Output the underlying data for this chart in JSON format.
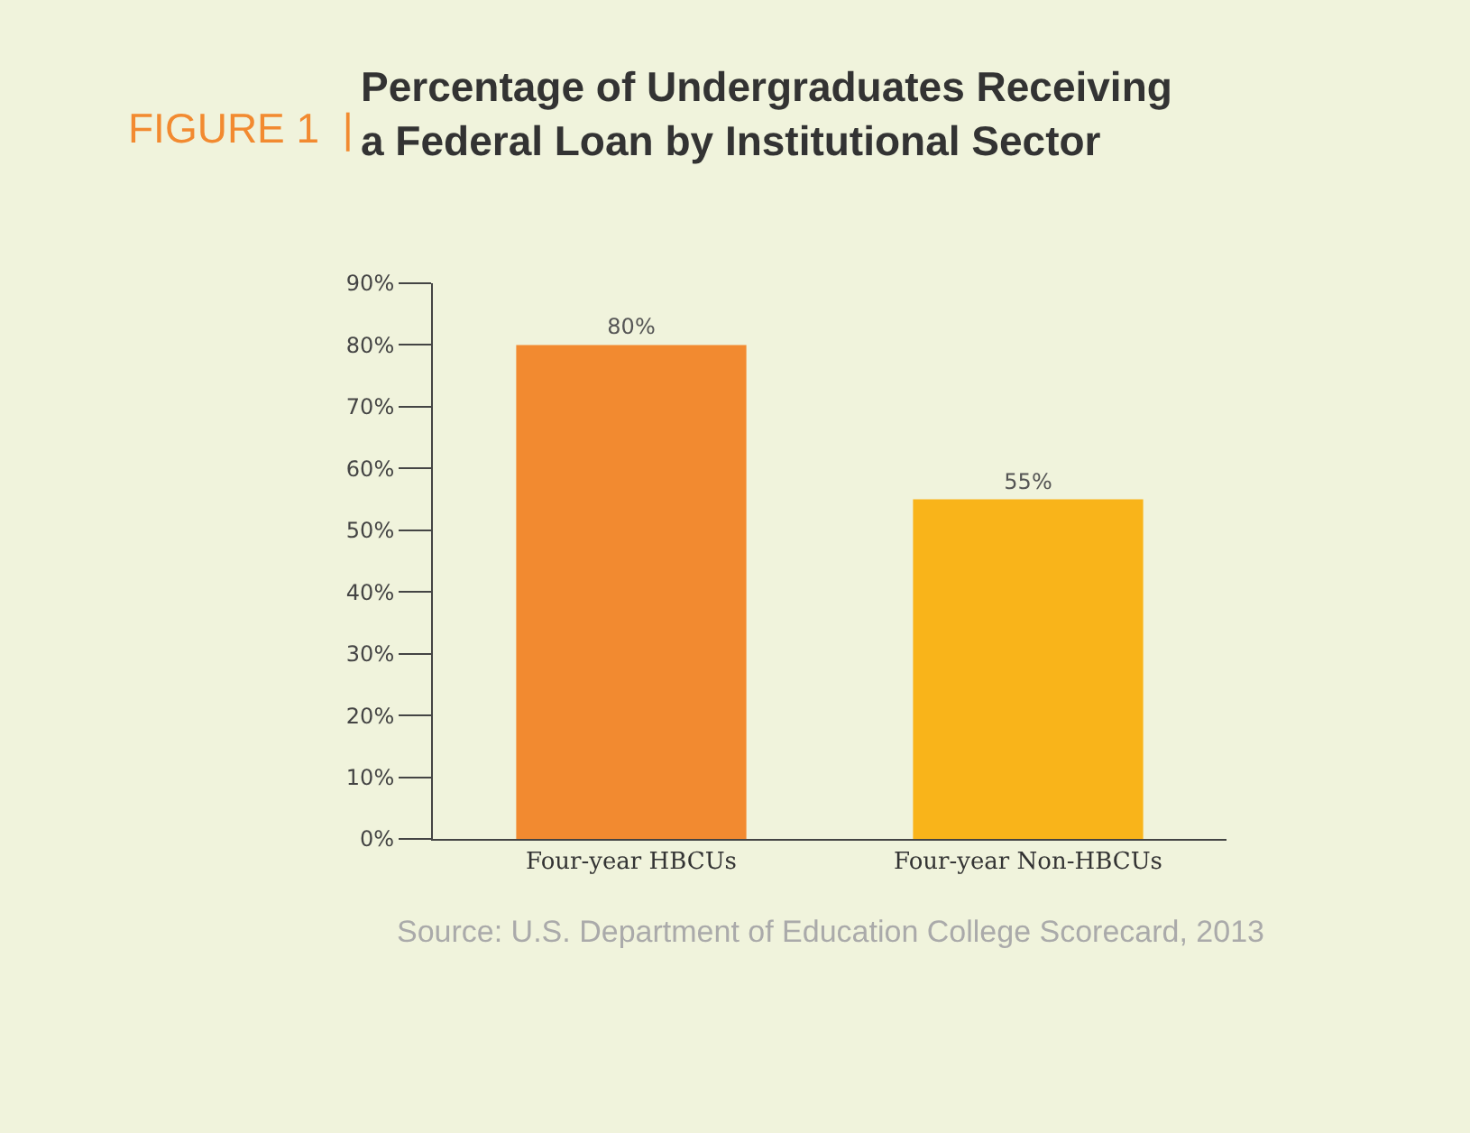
{
  "chart_data": {
    "type": "bar",
    "title": "Percentage of Undergraduates Receiving\na Federal Loan by Institutional Sector",
    "subtitle": "FIGURE 1  |",
    "categories": [
      "Four-year HBCUs",
      "Four-year Non-HBCUs"
    ],
    "values": [
      80,
      55
    ],
    "colors": [
      "#f28a30",
      "#f9b41a"
    ],
    "value_labels": [
      "80%",
      "55%"
    ],
    "ylim": [
      0,
      90
    ],
    "yticks": [
      {
        "value": 0,
        "label": "0%"
      },
      {
        "value": 10,
        "label": "10%"
      },
      {
        "value": 20,
        "label": "20%"
      },
      {
        "value": 30,
        "label": "30%"
      },
      {
        "value": 40,
        "label": "40%"
      },
      {
        "value": 50,
        "label": "50%"
      },
      {
        "value": 60,
        "label": "60%"
      },
      {
        "value": 70,
        "label": "70%"
      },
      {
        "value": 80,
        "label": "80%"
      },
      {
        "value": 90,
        "label": "90%"
      }
    ],
    "grid": false,
    "legend": false,
    "annotations": [
      "Source: U.S. Department of Education College Scorecard, 2013"
    ]
  }
}
